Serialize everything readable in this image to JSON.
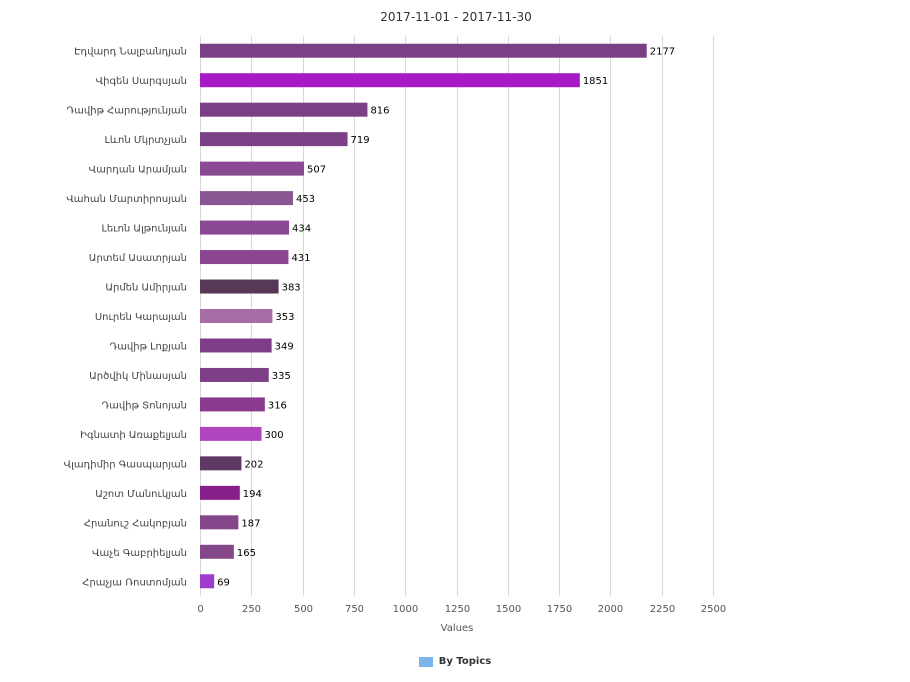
{
  "chart_data": {
    "type": "bar",
    "orientation": "horizontal",
    "title": "2017-11-01 - 2017-11-30",
    "xlabel": "Values",
    "ylabel": "",
    "xlim": [
      0,
      2500
    ],
    "x_ticks": [
      0,
      250,
      500,
      750,
      1000,
      1250,
      1500,
      1750,
      2000,
      2250,
      2500
    ],
    "grid": true,
    "legend_position": "bottom",
    "categories": [
      "Էդվարդ Նալբանդյան",
      "Վիգեն Սարգսյան",
      "Դավիթ Հարությունյան",
      "Լևոն Մկրտչյան",
      "Վարդան Արամյան",
      "Վահան Մարտիրոսյան",
      "Լեւոն Ալթունյան",
      "Արտեմ Ասատրյան",
      "Արմեն Ամիրյան",
      "Սուրեն Կարայան",
      "Դավիթ Լոքյան",
      "Արծվիկ Մինասյան",
      "Դավիթ Տոնոյան",
      "Իգնատի Առաքելյան",
      "Վլադիմիր Գասպարյան",
      "Աշոտ Մանուկյան",
      "Հրանուշ Հակոբյան",
      "Վաչե Գաբրիելյան",
      "Հրաչյա Ռոստոմյան"
    ],
    "series": [
      {
        "name": "By Topics",
        "values": [
          2177,
          1851,
          816,
          719,
          507,
          453,
          434,
          431,
          383,
          353,
          349,
          335,
          316,
          300,
          202,
          194,
          187,
          165,
          69
        ]
      }
    ],
    "bar_colors": [
      "#7b3f85",
      "#a719c4",
      "#7b3f85",
      "#7b3f85",
      "#8a4a93",
      "#8a5593",
      "#8a4a93",
      "#8a4591",
      "#573857",
      "#a66ca6",
      "#7e3d87",
      "#7e3d87",
      "#8a3b90",
      "#b046be",
      "#5e3963",
      "#861f89",
      "#83478a",
      "#83478a",
      "#9d3ccd"
    ],
    "legend_color": "#7cb5ec"
  }
}
